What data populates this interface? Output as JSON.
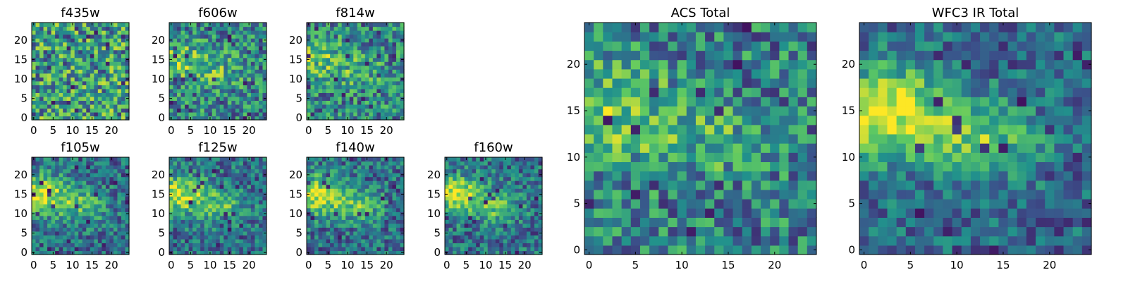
{
  "figure": {
    "colormap": "viridis",
    "colors": {
      "viridis_low": "#440154",
      "viridis_mid": "#21918c",
      "viridis_high": "#fde725",
      "axis": "#000000"
    }
  },
  "chart_data": [
    {
      "type": "heatmap",
      "title": "f435w",
      "grid_size": 25,
      "seed": 11,
      "blob": 0.0,
      "xticks": [
        0,
        5,
        10,
        15,
        20
      ],
      "yticks": [
        0,
        5,
        10,
        15,
        20
      ],
      "xlim": [
        0,
        24
      ],
      "ylim": [
        0,
        24
      ]
    },
    {
      "type": "heatmap",
      "title": "f606w",
      "grid_size": 25,
      "seed": 22,
      "blob": 0.4,
      "xticks": [
        0,
        5,
        10,
        15,
        20
      ],
      "yticks": [
        0,
        5,
        10,
        15,
        20
      ],
      "xlim": [
        0,
        24
      ],
      "ylim": [
        0,
        24
      ]
    },
    {
      "type": "heatmap",
      "title": "f814w",
      "grid_size": 25,
      "seed": 33,
      "blob": 0.4,
      "xticks": [
        0,
        5,
        10,
        15,
        20
      ],
      "yticks": [
        0,
        5,
        10,
        15,
        20
      ],
      "xlim": [
        0,
        24
      ],
      "ylim": [
        0,
        24
      ]
    },
    {
      "type": "heatmap",
      "title": "f105w",
      "grid_size": 25,
      "seed": 44,
      "blob": 0.8,
      "xticks": [
        0,
        5,
        10,
        15,
        20
      ],
      "yticks": [
        0,
        5,
        10,
        15,
        20
      ],
      "xlim": [
        0,
        24
      ],
      "ylim": [
        0,
        24
      ]
    },
    {
      "type": "heatmap",
      "title": "f125w",
      "grid_size": 25,
      "seed": 55,
      "blob": 0.8,
      "xticks": [
        0,
        5,
        10,
        15,
        20
      ],
      "yticks": [
        0,
        5,
        10,
        15,
        20
      ],
      "xlim": [
        0,
        24
      ],
      "ylim": [
        0,
        24
      ]
    },
    {
      "type": "heatmap",
      "title": "f140w",
      "grid_size": 25,
      "seed": 66,
      "blob": 0.8,
      "xticks": [
        0,
        5,
        10,
        15,
        20
      ],
      "yticks": [
        0,
        5,
        10,
        15,
        20
      ],
      "xlim": [
        0,
        24
      ],
      "ylim": [
        0,
        24
      ]
    },
    {
      "type": "heatmap",
      "title": "f160w",
      "grid_size": 25,
      "seed": 77,
      "blob": 0.8,
      "xticks": [
        0,
        5,
        10,
        15,
        20
      ],
      "yticks": [
        0,
        5,
        10,
        15,
        20
      ],
      "xlim": [
        0,
        24
      ],
      "ylim": [
        0,
        24
      ]
    },
    {
      "type": "heatmap",
      "title": "ACS Total",
      "grid_size": 25,
      "seed": 88,
      "blob": 0.5,
      "xticks": [
        0,
        5,
        10,
        15,
        20
      ],
      "yticks": [
        0,
        5,
        10,
        15,
        20
      ],
      "xlim": [
        0,
        24
      ],
      "ylim": [
        0,
        24
      ]
    },
    {
      "type": "heatmap",
      "title": "WFC3 IR Total",
      "grid_size": 25,
      "seed": 99,
      "blob": 0.95,
      "xticks": [
        0,
        5,
        10,
        15,
        20
      ],
      "yticks": [
        0,
        5,
        10,
        15,
        20
      ],
      "xlim": [
        0,
        24
      ],
      "ylim": [
        0,
        24
      ]
    }
  ]
}
